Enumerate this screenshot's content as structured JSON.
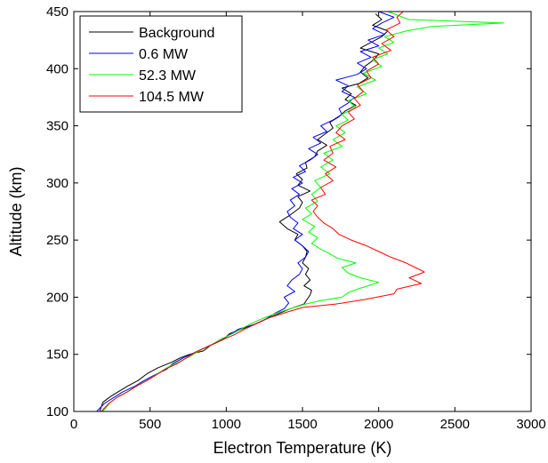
{
  "chart_data": {
    "type": "line",
    "xlabel": "Electron Temperature (K)",
    "ylabel": "Altitude (km)",
    "xlim": [
      0,
      3000
    ],
    "ylim": [
      100,
      450
    ],
    "xticks": [
      0,
      500,
      1000,
      1500,
      2000,
      2500,
      3000
    ],
    "yticks": [
      100,
      150,
      200,
      250,
      300,
      350,
      400,
      450
    ],
    "grid": false,
    "legend_position": "top-left",
    "series": [
      {
        "name": "Background",
        "color": "#000000",
        "points": [
          [
            170,
            100
          ],
          [
            190,
            108
          ],
          [
            240,
            113
          ],
          [
            300,
            118
          ],
          [
            350,
            122
          ],
          [
            420,
            127
          ],
          [
            480,
            133
          ],
          [
            550,
            138
          ],
          [
            640,
            143
          ],
          [
            700,
            147
          ],
          [
            760,
            150
          ],
          [
            850,
            153
          ],
          [
            900,
            158
          ],
          [
            980,
            163
          ],
          [
            1020,
            168
          ],
          [
            1100,
            172
          ],
          [
            1200,
            177
          ],
          [
            1280,
            182
          ],
          [
            1350,
            186
          ],
          [
            1420,
            190
          ],
          [
            1510,
            194
          ],
          [
            1530,
            198
          ],
          [
            1550,
            202
          ],
          [
            1560,
            206
          ],
          [
            1510,
            210
          ],
          [
            1550,
            215
          ],
          [
            1520,
            220
          ],
          [
            1540,
            225
          ],
          [
            1500,
            230
          ],
          [
            1520,
            235
          ],
          [
            1530,
            240
          ],
          [
            1500,
            245
          ],
          [
            1450,
            250
          ],
          [
            1470,
            255
          ],
          [
            1400,
            260
          ],
          [
            1350,
            266
          ],
          [
            1420,
            272
          ],
          [
            1480,
            278
          ],
          [
            1500,
            283
          ],
          [
            1470,
            288
          ],
          [
            1550,
            293
          ],
          [
            1470,
            298
          ],
          [
            1500,
            303
          ],
          [
            1460,
            308
          ],
          [
            1530,
            313
          ],
          [
            1520,
            318
          ],
          [
            1580,
            323
          ],
          [
            1600,
            328
          ],
          [
            1660,
            333
          ],
          [
            1600,
            338
          ],
          [
            1650,
            343
          ],
          [
            1700,
            348
          ],
          [
            1680,
            353
          ],
          [
            1740,
            358
          ],
          [
            1780,
            363
          ],
          [
            1850,
            368
          ],
          [
            1780,
            373
          ],
          [
            1820,
            378
          ],
          [
            1760,
            383
          ],
          [
            1870,
            387
          ],
          [
            1930,
            392
          ],
          [
            1880,
            397
          ],
          [
            1910,
            402
          ],
          [
            1970,
            408
          ],
          [
            2000,
            413
          ],
          [
            1880,
            418
          ],
          [
            1950,
            423
          ],
          [
            2020,
            428
          ],
          [
            2060,
            433
          ],
          [
            1960,
            438
          ],
          [
            2020,
            443
          ],
          [
            1980,
            448
          ]
        ]
      },
      {
        "name": "0.6 MW",
        "color": "#0000ff",
        "points": [
          [
            150,
            100
          ],
          [
            200,
            107
          ],
          [
            260,
            112
          ],
          [
            320,
            117
          ],
          [
            400,
            122
          ],
          [
            460,
            127
          ],
          [
            530,
            132
          ],
          [
            610,
            137
          ],
          [
            650,
            142
          ],
          [
            720,
            147
          ],
          [
            800,
            152
          ],
          [
            880,
            157
          ],
          [
            960,
            162
          ],
          [
            1020,
            167
          ],
          [
            1080,
            172
          ],
          [
            1180,
            176
          ],
          [
            1260,
            181
          ],
          [
            1320,
            186
          ],
          [
            1380,
            190
          ],
          [
            1410,
            195
          ],
          [
            1380,
            200
          ],
          [
            1450,
            205
          ],
          [
            1400,
            210
          ],
          [
            1430,
            215
          ],
          [
            1480,
            220
          ],
          [
            1500,
            225
          ],
          [
            1470,
            230
          ],
          [
            1520,
            235
          ],
          [
            1540,
            240
          ],
          [
            1500,
            245
          ],
          [
            1450,
            250
          ],
          [
            1500,
            255
          ],
          [
            1440,
            260
          ],
          [
            1470,
            265
          ],
          [
            1420,
            270
          ],
          [
            1400,
            275
          ],
          [
            1450,
            280
          ],
          [
            1420,
            285
          ],
          [
            1480,
            290
          ],
          [
            1430,
            295
          ],
          [
            1500,
            300
          ],
          [
            1440,
            305
          ],
          [
            1520,
            310
          ],
          [
            1480,
            315
          ],
          [
            1550,
            320
          ],
          [
            1600,
            325
          ],
          [
            1540,
            330
          ],
          [
            1620,
            335
          ],
          [
            1570,
            340
          ],
          [
            1660,
            345
          ],
          [
            1620,
            350
          ],
          [
            1700,
            355
          ],
          [
            1760,
            360
          ],
          [
            1740,
            365
          ],
          [
            1800,
            370
          ],
          [
            1840,
            375
          ],
          [
            1760,
            380
          ],
          [
            1800,
            385
          ],
          [
            1720,
            390
          ],
          [
            1860,
            395
          ],
          [
            1920,
            400
          ],
          [
            1860,
            405
          ],
          [
            1950,
            410
          ],
          [
            1880,
            415
          ],
          [
            2000,
            420
          ],
          [
            1930,
            425
          ],
          [
            2040,
            430
          ],
          [
            1960,
            435
          ],
          [
            2020,
            440
          ],
          [
            2100,
            445
          ],
          [
            2000,
            450
          ]
        ]
      },
      {
        "name": "52.3 MW",
        "color": "#00ff00",
        "points": [
          [
            190,
            100
          ],
          [
            240,
            108
          ],
          [
            290,
            113
          ],
          [
            360,
            118
          ],
          [
            420,
            123
          ],
          [
            490,
            128
          ],
          [
            560,
            134
          ],
          [
            620,
            139
          ],
          [
            700,
            144
          ],
          [
            760,
            148
          ],
          [
            820,
            153
          ],
          [
            900,
            158
          ],
          [
            960,
            163
          ],
          [
            1040,
            168
          ],
          [
            1110,
            173
          ],
          [
            1180,
            178
          ],
          [
            1250,
            182
          ],
          [
            1330,
            186
          ],
          [
            1420,
            190
          ],
          [
            1520,
            194
          ],
          [
            1620,
            197
          ],
          [
            1760,
            200
          ],
          [
            1800,
            204
          ],
          [
            1860,
            207
          ],
          [
            1930,
            210
          ],
          [
            2000,
            213
          ],
          [
            1880,
            217
          ],
          [
            1800,
            221
          ],
          [
            1760,
            226
          ],
          [
            1850,
            230
          ],
          [
            1730,
            234
          ],
          [
            1680,
            238
          ],
          [
            1620,
            242
          ],
          [
            1560,
            247
          ],
          [
            1600,
            252
          ],
          [
            1540,
            257
          ],
          [
            1580,
            262
          ],
          [
            1500,
            268
          ],
          [
            1560,
            273
          ],
          [
            1520,
            278
          ],
          [
            1600,
            284
          ],
          [
            1560,
            290
          ],
          [
            1620,
            296
          ],
          [
            1580,
            302
          ],
          [
            1680,
            308
          ],
          [
            1620,
            314
          ],
          [
            1700,
            320
          ],
          [
            1640,
            326
          ],
          [
            1760,
            332
          ],
          [
            1700,
            338
          ],
          [
            1780,
            344
          ],
          [
            1720,
            350
          ],
          [
            1800,
            355
          ],
          [
            1760,
            360
          ],
          [
            1850,
            366
          ],
          [
            1800,
            372
          ],
          [
            1920,
            378
          ],
          [
            1860,
            384
          ],
          [
            1980,
            390
          ],
          [
            1900,
            396
          ],
          [
            2020,
            402
          ],
          [
            1960,
            408
          ],
          [
            2060,
            413
          ],
          [
            2000,
            418
          ],
          [
            2100,
            423
          ],
          [
            2040,
            428
          ],
          [
            2180,
            433
          ],
          [
            2350,
            437
          ],
          [
            2820,
            440
          ],
          [
            2200,
            443
          ],
          [
            2120,
            447
          ],
          [
            2060,
            450
          ]
        ]
      },
      {
        "name": "104.5 MW",
        "color": "#ff0000",
        "points": [
          [
            180,
            100
          ],
          [
            230,
            107
          ],
          [
            280,
            112
          ],
          [
            350,
            117
          ],
          [
            410,
            122
          ],
          [
            480,
            127
          ],
          [
            540,
            132
          ],
          [
            600,
            137
          ],
          [
            680,
            142
          ],
          [
            740,
            147
          ],
          [
            800,
            152
          ],
          [
            880,
            157
          ],
          [
            960,
            162
          ],
          [
            1050,
            167
          ],
          [
            1120,
            172
          ],
          [
            1200,
            177
          ],
          [
            1280,
            182
          ],
          [
            1400,
            187
          ],
          [
            1500,
            191
          ],
          [
            1720,
            194
          ],
          [
            1910,
            198
          ],
          [
            2100,
            203
          ],
          [
            2120,
            207
          ],
          [
            2280,
            212
          ],
          [
            2200,
            217
          ],
          [
            2300,
            222
          ],
          [
            2240,
            226
          ],
          [
            2180,
            230
          ],
          [
            2080,
            235
          ],
          [
            2000,
            240
          ],
          [
            1920,
            245
          ],
          [
            1820,
            250
          ],
          [
            1740,
            255
          ],
          [
            1700,
            260
          ],
          [
            1640,
            265
          ],
          [
            1600,
            270
          ],
          [
            1570,
            275
          ],
          [
            1600,
            280
          ],
          [
            1560,
            285
          ],
          [
            1650,
            290
          ],
          [
            1620,
            296
          ],
          [
            1700,
            302
          ],
          [
            1650,
            308
          ],
          [
            1720,
            314
          ],
          [
            1640,
            320
          ],
          [
            1700,
            326
          ],
          [
            1680,
            332
          ],
          [
            1780,
            338
          ],
          [
            1720,
            344
          ],
          [
            1760,
            350
          ],
          [
            1840,
            356
          ],
          [
            1800,
            362
          ],
          [
            1880,
            368
          ],
          [
            1840,
            374
          ],
          [
            1900,
            380
          ],
          [
            1860,
            386
          ],
          [
            1950,
            392
          ],
          [
            1920,
            398
          ],
          [
            2000,
            404
          ],
          [
            1960,
            410
          ],
          [
            2080,
            416
          ],
          [
            2020,
            422
          ],
          [
            2100,
            428
          ],
          [
            2050,
            434
          ],
          [
            2140,
            440
          ],
          [
            2120,
            445
          ],
          [
            2160,
            450
          ]
        ]
      }
    ]
  }
}
